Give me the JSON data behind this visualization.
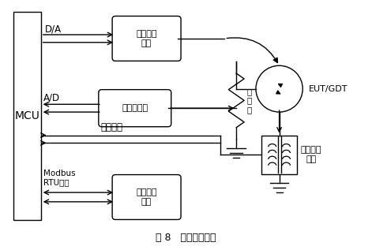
{
  "title": "图 8   测量系统结构",
  "mcu_label": "MCU",
  "block1_label": "高压直流\n模块",
  "block2_label": "峰值保持器",
  "block3_label": "人机交互\n模块",
  "block4_label": "电流测量\n模块",
  "divider_label": "分\n压\n器",
  "eut_label": "EUT/GDT",
  "da_label": "D/A",
  "ad_label": "A/D",
  "signal_label": "判据信号",
  "modbus_label": "Modbus\nRTU协议",
  "bg_color": "#ffffff",
  "box_color": "#000000",
  "font_size": 9
}
